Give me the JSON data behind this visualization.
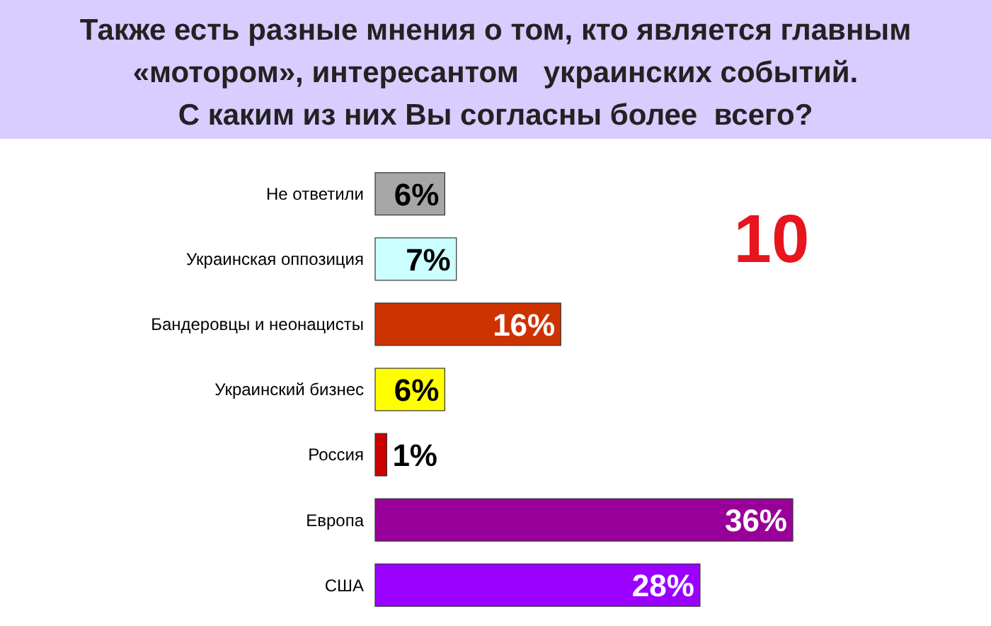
{
  "chart_data": {
    "type": "bar",
    "orientation": "horizontal",
    "title": "Также есть разные мнения о том, кто является главным «мотором», интересантом   украинских событий. С каким из них Вы согласны более  всего?",
    "categories": [
      "Не ответили",
      "Украинская оппозиция",
      "Бандеровцы и неонацисты",
      "Украинский бизнес",
      "Россия",
      "Европа",
      "США"
    ],
    "values": [
      6,
      7,
      16,
      6,
      1,
      36,
      28
    ],
    "colors": [
      "#a6a6a6",
      "#ccffff",
      "#cc3300",
      "#ffff00",
      "#cc0000",
      "#990099",
      "#9900ff"
    ],
    "data_labels": true,
    "value_labels": [
      "6%",
      "7%",
      "16%",
      "6%",
      "1%",
      "36%",
      "28%"
    ],
    "annotations": [
      "10"
    ]
  }
}
